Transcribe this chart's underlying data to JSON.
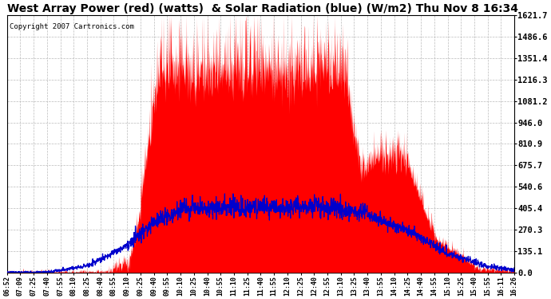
{
  "title": "West Array Power (red) (watts)  & Solar Radiation (blue) (W/m2) Thu Nov 8 16:34",
  "copyright": "Copyright 2007 Cartronics.com",
  "yticks_right": [
    0.0,
    135.1,
    270.3,
    405.4,
    540.6,
    675.7,
    810.9,
    946.0,
    1081.2,
    1216.3,
    1351.4,
    1486.6,
    1621.7
  ],
  "ytick_labels_right": [
    "0.0",
    "135.1",
    "270.3",
    "405.4",
    "540.6",
    "675.7",
    "810.9",
    "946.0",
    "1081.2",
    "1216.3",
    "1351.4",
    "1486.6",
    "1621.7"
  ],
  "ymax": 1621.7,
  "ymin": 0.0,
  "background_color": "#ffffff",
  "grid_color": "#bbbbbb",
  "red_color": "#ff0000",
  "blue_color": "#0000cc",
  "title_fontsize": 10,
  "copyright_fontsize": 6.5,
  "x_tick_fontsize": 6,
  "y_tick_fontsize": 7.5,
  "xtick_labels": [
    "06:52",
    "07:09",
    "07:25",
    "07:40",
    "07:55",
    "08:10",
    "08:25",
    "08:40",
    "08:55",
    "09:10",
    "09:25",
    "09:40",
    "09:55",
    "10:10",
    "10:25",
    "10:40",
    "10:55",
    "11:10",
    "11:25",
    "11:40",
    "11:55",
    "12:10",
    "12:25",
    "12:40",
    "12:55",
    "13:10",
    "13:25",
    "13:40",
    "13:55",
    "14:10",
    "14:25",
    "14:40",
    "14:55",
    "15:10",
    "15:25",
    "15:40",
    "15:55",
    "16:11",
    "16:26"
  ]
}
